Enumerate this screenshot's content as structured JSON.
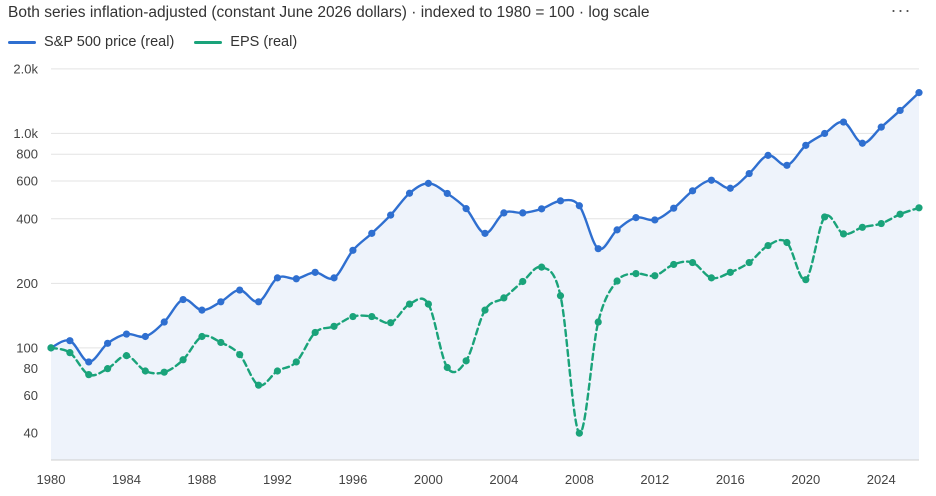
{
  "header": {
    "title": "Both series inflation-adjusted (constant June 2026 dollars) · indexed to 1980 = 100 · log scale",
    "menu_glyph": "···"
  },
  "legend": [
    {
      "label": "S&P 500 price (real)",
      "color": "#2f6fd0"
    },
    {
      "label": "EPS (real)",
      "color": "#1aa37a"
    }
  ],
  "chart_data": {
    "type": "line",
    "title": "Both series inflation-adjusted (constant June 2026 dollars) · indexed to 1980 = 100 · log scale",
    "xlabel": "",
    "ylabel": "",
    "yscale": "log",
    "xlim": [
      1980,
      2026
    ],
    "ylim": [
      30,
      2200
    ],
    "grid": true,
    "legend_position": "top-left",
    "x_ticks": [
      1980,
      1984,
      1988,
      1992,
      1996,
      2000,
      2004,
      2008,
      2012,
      2016,
      2020,
      2024
    ],
    "y_ticks": [
      {
        "value": 40,
        "label": "40"
      },
      {
        "value": 60,
        "label": "60"
      },
      {
        "value": 80,
        "label": "80"
      },
      {
        "value": 100,
        "label": "100"
      },
      {
        "value": 200,
        "label": "200"
      },
      {
        "value": 400,
        "label": "400"
      },
      {
        "value": 600,
        "label": "600"
      },
      {
        "value": 800,
        "label": "800"
      },
      {
        "value": 1000,
        "label": "1.0k"
      },
      {
        "value": 2000,
        "label": "2.0k"
      }
    ],
    "x": [
      1980,
      1981,
      1982,
      1983,
      1984,
      1985,
      1986,
      1987,
      1988,
      1989,
      1990,
      1991,
      1992,
      1993,
      1994,
      1995,
      1996,
      1997,
      1998,
      1999,
      2000,
      2001,
      2002,
      2003,
      2004,
      2005,
      2006,
      2007,
      2008,
      2009,
      2010,
      2011,
      2012,
      2013,
      2014,
      2015,
      2016,
      2017,
      2018,
      2019,
      2020,
      2021,
      2022,
      2023,
      2024,
      2025,
      2026
    ],
    "series": [
      {
        "name": "S&P 500 price (real)",
        "color": "#2f6fd0",
        "style": "solid",
        "area": true,
        "values": [
          100,
          108,
          86,
          105,
          116,
          113,
          132,
          168,
          150,
          164,
          186,
          164,
          212,
          210,
          225,
          212,
          285,
          342,
          416,
          526,
          585,
          525,
          446,
          342,
          426,
          426,
          445,
          485,
          460,
          290,
          355,
          405,
          395,
          448,
          540,
          605,
          555,
          650,
          790,
          710,
          880,
          1000,
          1130,
          900,
          1070,
          1280,
          1550
        ]
      },
      {
        "name": "EPS (real)",
        "color": "#1aa37a",
        "style": "dashed",
        "area": false,
        "values": [
          100,
          95,
          75,
          80,
          92,
          78,
          77,
          88,
          113,
          106,
          93,
          67,
          78,
          86,
          118,
          126,
          140,
          140,
          131,
          160,
          160,
          81,
          87,
          150,
          171,
          204,
          238,
          175,
          40,
          132,
          205,
          222,
          217,
          245,
          250,
          212,
          225,
          250,
          300,
          310,
          208,
          408,
          340,
          365,
          380,
          420,
          450
        ]
      }
    ]
  }
}
